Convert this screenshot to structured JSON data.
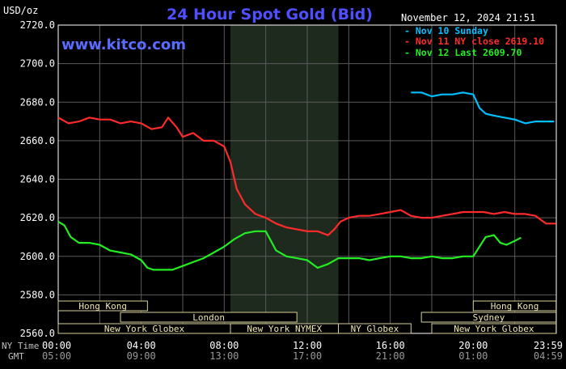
{
  "header": {
    "unit": "USD/oz",
    "title": "24 Hour Spot Gold (Bid)",
    "timestamp": "November 12, 2024 21:51",
    "brand": "www.kitco.com",
    "title_color": "#4f4fff",
    "brand_color": "#5a6cff"
  },
  "legend": [
    {
      "label": "Nov 10 Sunday",
      "color": "#00bfff"
    },
    {
      "label": "Nov 11 NY close 2619.10",
      "color": "#ff2a2a"
    },
    {
      "label": "Nov 12 Last 2609.70",
      "color": "#22ee22"
    }
  ],
  "time_labels": {
    "ny_time": "NY Time",
    "gmt": "GMT",
    "ny": [
      "00:00",
      "04:00",
      "08:00",
      "12:00",
      "16:00",
      "20:00",
      "23:59"
    ],
    "gmt_ticks": [
      "05:00",
      "09:00",
      "13:00",
      "17:00",
      "21:00",
      "01:00",
      "04:59"
    ]
  },
  "sessions": {
    "row1": [
      {
        "label": "Hong Kong",
        "start": 0.0,
        "end": 4.3
      },
      {
        "label": "Hong Kong",
        "start": 20.0,
        "end": 23.99
      }
    ],
    "row2": [
      {
        "label": "London",
        "start": 3.0,
        "end": 11.5
      },
      {
        "label": "Sydney",
        "start": 17.5,
        "end": 23.99
      }
    ],
    "row3": [
      {
        "label": "New York Globex",
        "start": 0.0,
        "end": 8.3
      },
      {
        "label": "New York NYMEX",
        "start": 8.3,
        "end": 13.5
      },
      {
        "label": "NY Globex",
        "start": 13.5,
        "end": 17.0
      },
      {
        "label": "New York Globex",
        "start": 18.0,
        "end": 23.99
      }
    ]
  },
  "chart_data": {
    "type": "line",
    "title": "24 Hour Spot Gold (Bid)",
    "ylabel": "USD/oz",
    "xlim": [
      0,
      24
    ],
    "ylim": [
      2560,
      2720
    ],
    "yticks": [
      2560,
      2580,
      2600,
      2620,
      2640,
      2660,
      2680,
      2700,
      2720
    ],
    "ytick_labels": [
      "2560.0",
      "2580.0",
      "2600.0",
      "2620.0",
      "2640.0",
      "2660.0",
      "2680.0",
      "2700.0",
      "2720.0"
    ],
    "grid": true,
    "shaded_hours": [
      8.3,
      13.5
    ],
    "series": [
      {
        "name": "Nov 10 Sunday",
        "color": "#00bfff",
        "x": [
          17.0,
          17.5,
          18.0,
          18.5,
          19.0,
          19.5,
          20.0,
          20.3,
          20.6,
          21.0,
          21.5,
          22.0,
          22.5,
          23.0,
          23.5,
          23.9
        ],
        "y": [
          2685,
          2685,
          2683,
          2684,
          2684,
          2685,
          2684,
          2677,
          2674,
          2673,
          2672,
          2671,
          2669,
          2670,
          2670,
          2670
        ]
      },
      {
        "name": "Nov 11 NY close 2619.10",
        "color": "#ff2a2a",
        "x": [
          0.0,
          0.5,
          1.0,
          1.5,
          2.0,
          2.5,
          3.0,
          3.5,
          4.0,
          4.5,
          5.0,
          5.3,
          5.7,
          6.0,
          6.5,
          7.0,
          7.5,
          8.0,
          8.3,
          8.6,
          9.0,
          9.5,
          10.0,
          10.5,
          11.0,
          11.5,
          12.0,
          12.5,
          13.0,
          13.3,
          13.6,
          14.0,
          14.5,
          15.0,
          15.5,
          16.0,
          16.5,
          17.0,
          17.5,
          18.0,
          18.5,
          19.0,
          19.5,
          20.0,
          20.5,
          21.0,
          21.5,
          22.0,
          22.5,
          23.0,
          23.5,
          23.99
        ],
        "y": [
          2672,
          2669,
          2670,
          2672,
          2671,
          2671,
          2669,
          2670,
          2669,
          2666,
          2667,
          2672,
          2667,
          2662,
          2664,
          2660,
          2660,
          2657,
          2649,
          2635,
          2627,
          2622,
          2620,
          2617,
          2615,
          2614,
          2613,
          2613,
          2611,
          2614,
          2618,
          2620,
          2621,
          2621,
          2622,
          2623,
          2624,
          2621,
          2620,
          2620,
          2621,
          2622,
          2623,
          2623,
          2623,
          2622,
          2623,
          2622,
          2622,
          2621,
          2617,
          2617
        ]
      },
      {
        "name": "Nov 12 Last 2609.70",
        "color": "#22ee22",
        "x": [
          0.0,
          0.3,
          0.6,
          1.0,
          1.5,
          2.0,
          2.5,
          3.0,
          3.5,
          4.0,
          4.3,
          4.6,
          5.0,
          5.5,
          6.0,
          6.5,
          7.0,
          7.5,
          8.0,
          8.5,
          9.0,
          9.5,
          10.0,
          10.5,
          11.0,
          11.5,
          12.0,
          12.5,
          13.0,
          13.5,
          14.0,
          14.5,
          15.0,
          15.5,
          16.0,
          16.5,
          17.0,
          17.5,
          18.0,
          18.5,
          19.0,
          19.5,
          20.0,
          20.3,
          20.6,
          21.0,
          21.3,
          21.6,
          22.0,
          22.3
        ],
        "y": [
          2618,
          2616,
          2610,
          2607,
          2607,
          2606,
          2603,
          2602,
          2601,
          2598,
          2594,
          2593,
          2593,
          2593,
          2595,
          2597,
          2599,
          2602,
          2605,
          2609,
          2612,
          2613,
          2613,
          2603,
          2600,
          2599,
          2598,
          2594,
          2596,
          2599,
          2599,
          2599,
          2598,
          2599,
          2600,
          2600,
          2599,
          2599,
          2600,
          2599,
          2599,
          2600,
          2600,
          2605,
          2610,
          2611,
          2607,
          2606,
          2608,
          2609.7
        ]
      }
    ]
  }
}
